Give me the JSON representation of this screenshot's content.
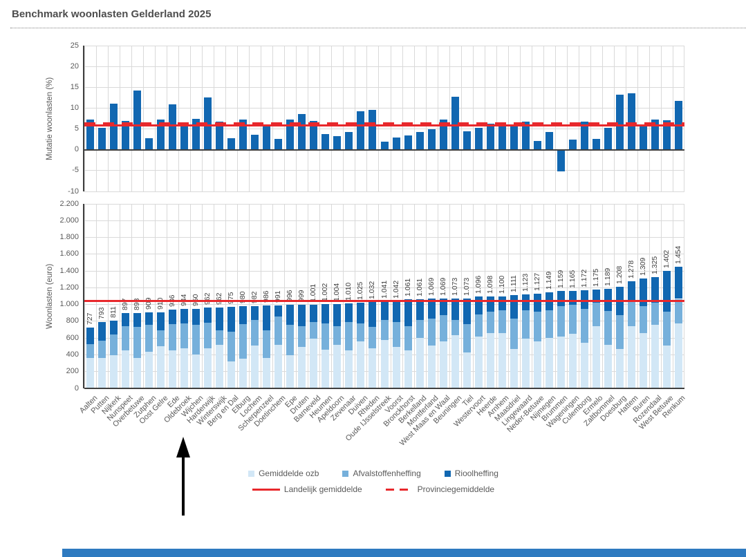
{
  "page": {
    "title": "Benchmark woonlasten Gelderland 2025"
  },
  "legend": {
    "series": [
      {
        "label": "Gemiddelde ozb",
        "color": "#d2e7f6"
      },
      {
        "label": "Afvalstoffenheffing",
        "color": "#76b0db"
      },
      {
        "label": "Rioolheffing",
        "color": "#1167b1"
      }
    ],
    "lines": [
      {
        "label": "Landelijk gemiddelde",
        "style": "solid",
        "color": "#e8282c"
      },
      {
        "label": "Provinciegemiddelde",
        "style": "dashed",
        "color": "#e8282c"
      }
    ]
  },
  "annotation": {
    "type": "arrow",
    "points_at": "Oldebroek"
  },
  "chart_data": [
    {
      "type": "bar",
      "ylabel": "Mutatie woonlasten (%)",
      "ylim": [
        -10,
        25
      ],
      "yticks": [
        25,
        20,
        15,
        10,
        5,
        0,
        -5,
        -10
      ],
      "grid": true,
      "bar_color": "#1167b1",
      "categories": [
        "Aalten",
        "Putten",
        "Nijkerk",
        "Nunspeet",
        "Overbetuwe",
        "Zutphen",
        "Oost Gelre",
        "Ede",
        "Oldebroek",
        "Wijchen",
        "Harderwijk",
        "Winterswijk",
        "Berg en Dal",
        "Elburg",
        "Lochem",
        "Scherpenzeel",
        "Doetinchem",
        "Epe",
        "Druten",
        "Barneveld",
        "Heumen",
        "Apeldoorn",
        "Zevenaar",
        "Duiven",
        "Rheden",
        "Oude IJsselstreek",
        "Voorst",
        "Bronckhorst",
        "Berkelland",
        "Montferland",
        "West Maas en Waal",
        "Beuningen",
        "Tiel",
        "Westervoort",
        "Heerde",
        "Arnhem",
        "Maasdriel",
        "Lingewaard",
        "Neder-Betuwe",
        "Nijmegen",
        "Brummen",
        "Wageningen",
        "Culemborg",
        "Ermelo",
        "Zaltbommel",
        "Doesburg",
        "Hattem",
        "Buren",
        "Rozendaal",
        "West Betuwe",
        "Renkum"
      ],
      "values": [
        7.2,
        5.2,
        11.0,
        6.9,
        14.2,
        2.8,
        7.3,
        10.9,
        5.8,
        7.4,
        12.6,
        6.7,
        2.8,
        7.3,
        3.6,
        5.6,
        2.6,
        7.2,
        8.5,
        7.0,
        3.8,
        3.2,
        4.2,
        9.3,
        9.5,
        2.0,
        2.9,
        3.4,
        4.3,
        4.9,
        7.2,
        12.8,
        4.4,
        5.3,
        6.3,
        6.5,
        5.9,
        6.7,
        2.1,
        4.2,
        -5.2,
        2.4,
        6.8,
        2.6,
        5.3,
        13.2,
        13.5,
        5.8,
        7.3,
        7.1,
        11.7
      ],
      "reference_lines": [
        {
          "label": "Landelijk gemiddelde",
          "value": 5.9,
          "style": "solid"
        },
        {
          "label": "Provinciegemiddelde",
          "value": 6.4,
          "style": "dashed"
        }
      ]
    },
    {
      "type": "bar",
      "stacked": true,
      "ylabel": "Woonlasten (euro)",
      "ylim": [
        0,
        2200
      ],
      "ytick_labels": [
        "2.200",
        "2.000",
        "1.800",
        "1.600",
        "1.400",
        "1.200",
        "1.000",
        "800",
        "600",
        "400",
        "200",
        "0"
      ],
      "grid": true,
      "categories": [
        "Aalten",
        "Putten",
        "Nijkerk",
        "Nunspeet",
        "Overbetuwe",
        "Zutphen",
        "Oost Gelre",
        "Ede",
        "Oldebroek",
        "Wijchen",
        "Harderwijk",
        "Winterswijk",
        "Berg en Dal",
        "Elburg",
        "Lochem",
        "Scherpenzeel",
        "Doetinchem",
        "Epe",
        "Druten",
        "Barneveld",
        "Heumen",
        "Apeldoorn",
        "Zevenaar",
        "Duiven",
        "Rheden",
        "Oude IJsselstreek",
        "Voorst",
        "Bronckhorst",
        "Berkelland",
        "Montferland",
        "West Maas en Waal",
        "Beuningen",
        "Tiel",
        "Westervoort",
        "Heerde",
        "Arnhem",
        "Maasdriel",
        "Lingewaard",
        "Neder-Betuwe",
        "Nijmegen",
        "Brummen",
        "Wageningen",
        "Culemborg",
        "Ermelo",
        "Zaltbommel",
        "Doesburg",
        "Hattem",
        "Buren",
        "Rozendaal",
        "West Betuwe",
        "Renkum"
      ],
      "series": [
        {
          "name": "Gemiddelde ozb",
          "color": "#d2e7f6",
          "values": [
            360,
            365,
            395,
            450,
            360,
            435,
            505,
            450,
            478,
            405,
            478,
            520,
            325,
            355,
            507,
            360,
            521,
            395,
            493,
            591,
            465,
            521,
            451,
            563,
            479,
            577,
            493,
            451,
            605,
            507,
            563,
            633,
            430,
            619,
            661,
            661,
            470,
            591,
            563,
            605,
            620,
            647,
            540,
            745,
            520,
            470,
            745,
            661,
            759,
            507,
            773
          ]
        },
        {
          "name": "Afvalstoffenheffing",
          "color": "#76b0db",
          "values": [
            165,
            200,
            250,
            295,
            370,
            322,
            184,
            316,
            295,
            355,
            308,
            170,
            350,
            415,
            308,
            330,
            336,
            364,
            252,
            196,
            308,
            224,
            336,
            210,
            252,
            238,
            294,
            288,
            210,
            322,
            308,
            182,
            340,
            266,
            252,
            266,
            360,
            336,
            350,
            322,
            360,
            350,
            410,
            280,
            400,
            400,
            294,
            322,
            266,
            406,
            294
          ]
        },
        {
          "name": "Rioolheffing",
          "color": "#1167b1",
          "values": [
            202,
            228,
            166,
            152,
            168,
            152,
            221,
            170,
            171,
            190,
            176,
            272,
            300,
            210,
            167,
            296,
            134,
            237,
            254,
            214,
            229,
            259,
            223,
            252,
            301,
            226,
            255,
            322,
            246,
            240,
            198,
            258,
            303,
            211,
            185,
            173,
            281,
            196,
            214,
            222,
            179,
            168,
            222,
            150,
            269,
            338,
            239,
            326,
            300,
            489,
            387
          ]
        }
      ],
      "totals": [
        727,
        793,
        811,
        897,
        898,
        909,
        910,
        936,
        944,
        950,
        962,
        962,
        975,
        980,
        982,
        986,
        991,
        996,
        999,
        1001,
        1002,
        1004,
        1010,
        1025,
        1032,
        1041,
        1042,
        1061,
        1061,
        1069,
        1069,
        1073,
        1073,
        1096,
        1098,
        1100,
        1111,
        1123,
        1127,
        1149,
        1159,
        1165,
        1172,
        1175,
        1189,
        1208,
        1278,
        1309,
        1325,
        1402,
        1454
      ],
      "total_labels": [
        "727",
        "793",
        "811",
        "897",
        "898",
        "909",
        "910",
        "936",
        "944",
        "950",
        "962",
        "962",
        "975",
        "980",
        "982",
        "986",
        "991",
        "996",
        "999",
        "1.001",
        "1.002",
        "1.004",
        "1.010",
        "1.025",
        "1.032",
        "1.041",
        "1.042",
        "1.061",
        "1.061",
        "1.069",
        "1.069",
        "1.073",
        "1.073",
        "1.096",
        "1.098",
        "1.100",
        "1.111",
        "1.123",
        "1.127",
        "1.149",
        "1.159",
        "1.165",
        "1.172",
        "1.175",
        "1.189",
        "1.208",
        "1.278",
        "1.309",
        "1.325",
        "1.402",
        "1.454"
      ],
      "reference_lines": [
        {
          "label": "Landelijk gemiddelde",
          "value": 1045,
          "style": "solid"
        }
      ]
    }
  ]
}
